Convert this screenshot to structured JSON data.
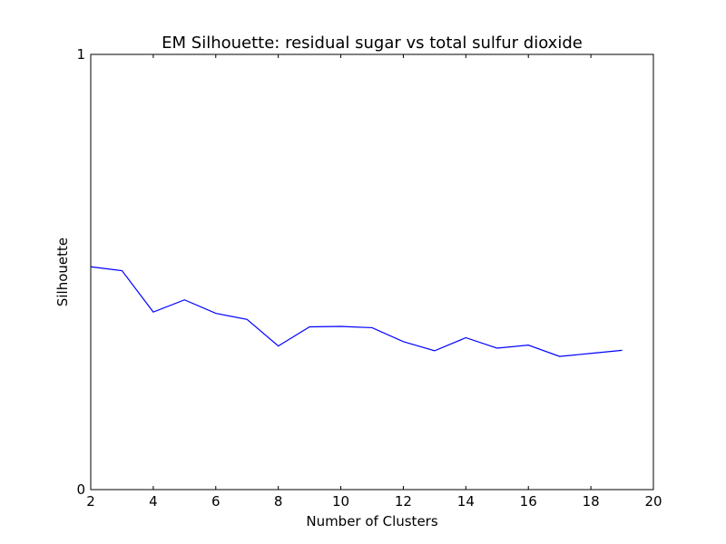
{
  "chart_data": {
    "type": "line",
    "title": "EM Silhouette: residual sugar vs total sulfur dioxide",
    "xlabel": "Number of Clusters",
    "ylabel": "Silhouette",
    "xlim": [
      2,
      20
    ],
    "ylim": [
      0,
      1
    ],
    "xticks": [
      2,
      4,
      6,
      8,
      10,
      12,
      14,
      16,
      18,
      20
    ],
    "yticks": [
      0,
      1
    ],
    "grid": false,
    "legend": "none",
    "series": [
      {
        "color": "#0000ff",
        "x": [
          2,
          3,
          4,
          5,
          6,
          7,
          8,
          9,
          10,
          11,
          12,
          13,
          14,
          15,
          16,
          17,
          18,
          19
        ],
        "y": [
          0.512,
          0.503,
          0.408,
          0.436,
          0.405,
          0.391,
          0.33,
          0.374,
          0.375,
          0.372,
          0.34,
          0.319,
          0.349,
          0.325,
          0.332,
          0.306,
          0.313,
          0.32
        ]
      }
    ]
  }
}
